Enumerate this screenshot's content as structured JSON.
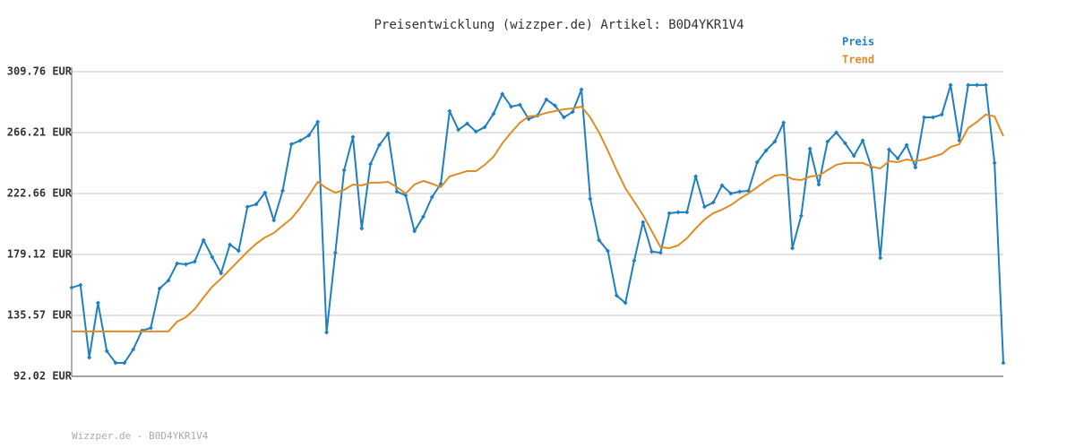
{
  "chart_data": {
    "type": "line",
    "title": "Preisentwicklung (wizzper.de) Artikel: B0D4YKR1V4",
    "footer": "Wizzper.de - B0D4YKR1V4",
    "ylim": [
      92.02,
      309.76
    ],
    "yticks": [
      {
        "value": 92.02,
        "label": "92.02 EUR"
      },
      {
        "value": 135.57,
        "label": "135.57 EUR"
      },
      {
        "value": 179.12,
        "label": "179.12 EUR"
      },
      {
        "value": 222.66,
        "label": "222.66 EUR"
      },
      {
        "value": 266.21,
        "label": "266.21 EUR"
      },
      {
        "value": 309.76,
        "label": "309.76 EUR"
      }
    ],
    "grid": true,
    "legend": "top-right",
    "series": [
      {
        "name": "Preis",
        "color": "#1f7fbf",
        "markers": true,
        "values": [
          155.4,
          157.3,
          105.5,
          144.5,
          110.0,
          101.6,
          101.6,
          111.2,
          124.7,
          126.6,
          154.8,
          160.5,
          172.7,
          172.1,
          174.0,
          189.4,
          177.2,
          165.7,
          186.2,
          181.7,
          213.1,
          215.0,
          223.3,
          203.5,
          224.6,
          257.9,
          260.5,
          264.3,
          273.9,
          123.4,
          180.4,
          239.4,
          263.1,
          197.7,
          243.8,
          257.3,
          265.6,
          224.0,
          221.4,
          195.8,
          206.1,
          220.1,
          229.7,
          281.6,
          268.2,
          272.7,
          266.9,
          270.1,
          279.7,
          293.8,
          284.8,
          286.1,
          275.9,
          278.4,
          289.9,
          285.5,
          277.1,
          281.0,
          297.0,
          218.9,
          189.4,
          181.7,
          149.7,
          144.5,
          174.7,
          202.2,
          181.1,
          180.4,
          208.6,
          209.3,
          209.3,
          234.9,
          213.1,
          216.3,
          228.5,
          222.7,
          224.0,
          224.6,
          245.1,
          253.4,
          259.8,
          273.3,
          183.6,
          206.7,
          254.7,
          229.1,
          259.8,
          266.3,
          258.6,
          249.6,
          260.5,
          241.3,
          176.6,
          254.1,
          247.7,
          257.3,
          241.3,
          277.1,
          277.1,
          279.1,
          300.2,
          260.5,
          300.2,
          300.2,
          300.2,
          244.5,
          101.6
        ]
      },
      {
        "name": "Trend",
        "color": "#e08c24",
        "markers": false,
        "values": [
          124.1,
          124.1,
          124.1,
          124.1,
          124.1,
          124.1,
          124.1,
          124.1,
          124.1,
          124.1,
          124.1,
          124.1,
          131.1,
          134.3,
          140.1,
          148.4,
          156.1,
          161.9,
          168.3,
          174.7,
          181.1,
          186.8,
          191.3,
          194.5,
          199.7,
          204.8,
          212.5,
          221.4,
          231.0,
          226.5,
          223.3,
          225.3,
          229.1,
          228.5,
          230.4,
          230.4,
          231.0,
          227.2,
          222.7,
          229.1,
          231.7,
          229.7,
          227.2,
          234.9,
          236.8,
          238.7,
          238.7,
          243.2,
          249.0,
          258.6,
          266.3,
          273.3,
          277.8,
          278.4,
          280.3,
          281.6,
          282.9,
          283.5,
          284.8,
          277.1,
          266.3,
          253.4,
          239.4,
          226.5,
          216.9,
          207.3,
          195.8,
          184.3,
          183.6,
          185.6,
          190.7,
          197.7,
          204.1,
          208.6,
          211.2,
          214.4,
          218.9,
          222.7,
          227.2,
          231.7,
          235.5,
          236.2,
          233.0,
          232.3,
          234.9,
          235.5,
          239.4,
          243.2,
          244.5,
          244.5,
          244.5,
          241.9,
          240.6,
          245.8,
          245.1,
          247.0,
          245.8,
          247.0,
          249.0,
          250.9,
          256.0,
          257.9,
          269.5,
          273.9,
          279.1,
          277.8,
          263.7
        ]
      }
    ]
  }
}
